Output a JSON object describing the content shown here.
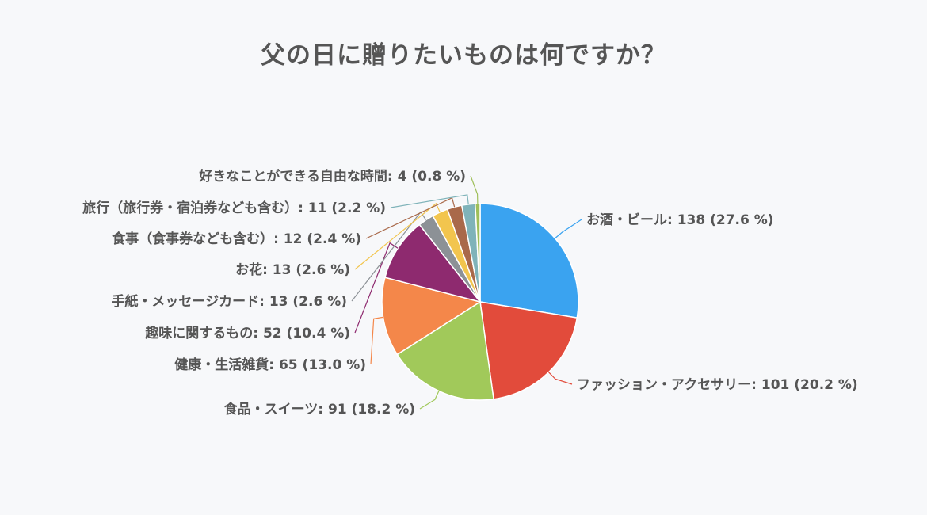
{
  "chart_data": {
    "type": "pie",
    "title": "父の日に贈りたいものは何ですか？",
    "slices": [
      {
        "label": "お酒・ビール",
        "value": 138,
        "percent": "27.6 %",
        "color": "#3aa3f0"
      },
      {
        "label": "ファッション・アクセサリー",
        "value": 101,
        "percent": "20.2 %",
        "color": "#e24b3b"
      },
      {
        "label": "食品・スイーツ",
        "value": 91,
        "percent": "18.2 %",
        "color": "#a1c95a"
      },
      {
        "label": "健康・生活雑貨",
        "value": 65,
        "percent": "13.0 %",
        "color": "#f4874a"
      },
      {
        "label": "趣味に関するもの",
        "value": 52,
        "percent": "10.4 %",
        "color": "#8e2a6f"
      },
      {
        "label": "手紙・メッセージカード",
        "value": 13,
        "percent": "2.6 %",
        "color": "#8c9196"
      },
      {
        "label": "お花",
        "value": 13,
        "percent": "2.6 %",
        "color": "#f2c54e"
      },
      {
        "label": "食事（食事券なども含む）",
        "value": 12,
        "percent": "2.4 %",
        "color": "#a9694a"
      },
      {
        "label": "旅行（旅行券・宿泊券なども含む）",
        "value": 11,
        "percent": "2.2 %",
        "color": "#7fb3b9"
      },
      {
        "label": "好きなことができる自由な時間",
        "value": 4,
        "percent": "0.8 %",
        "color": "#9fbf5a"
      }
    ]
  }
}
